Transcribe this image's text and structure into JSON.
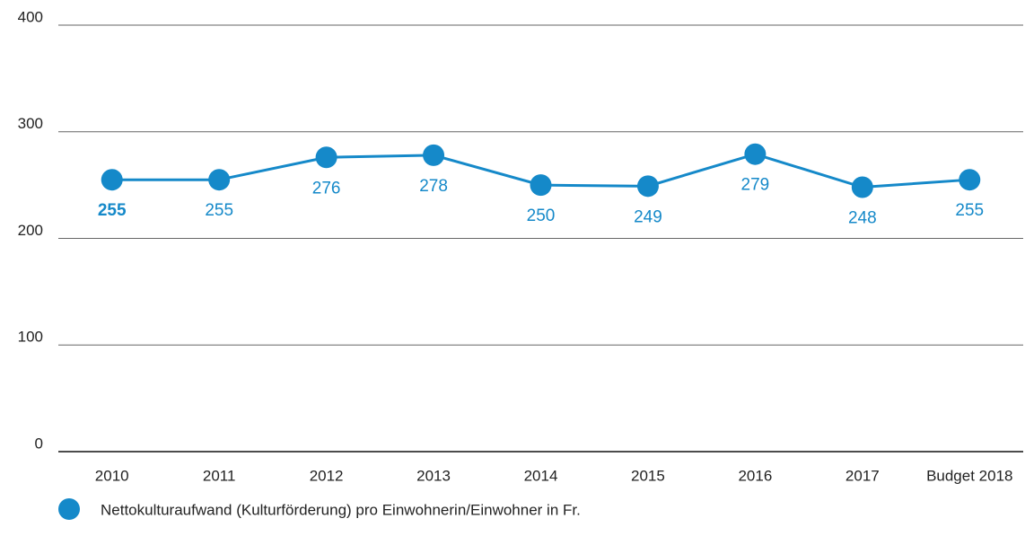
{
  "chart_data": {
    "type": "line",
    "categories": [
      "2010",
      "2011",
      "2012",
      "2013",
      "2014",
      "2015",
      "2016",
      "2017",
      "Budget 2018"
    ],
    "series": [
      {
        "name": "Nettokulturaufwand (Kulturförderung) pro Einwohnerin/Einwohner in Fr.",
        "color": "#1589c9",
        "values": [
          255,
          255,
          276,
          278,
          250,
          249,
          279,
          248,
          255
        ]
      }
    ],
    "ylim": [
      0,
      400
    ],
    "yticks": [
      0,
      100,
      200,
      300,
      400
    ],
    "grid": true
  }
}
